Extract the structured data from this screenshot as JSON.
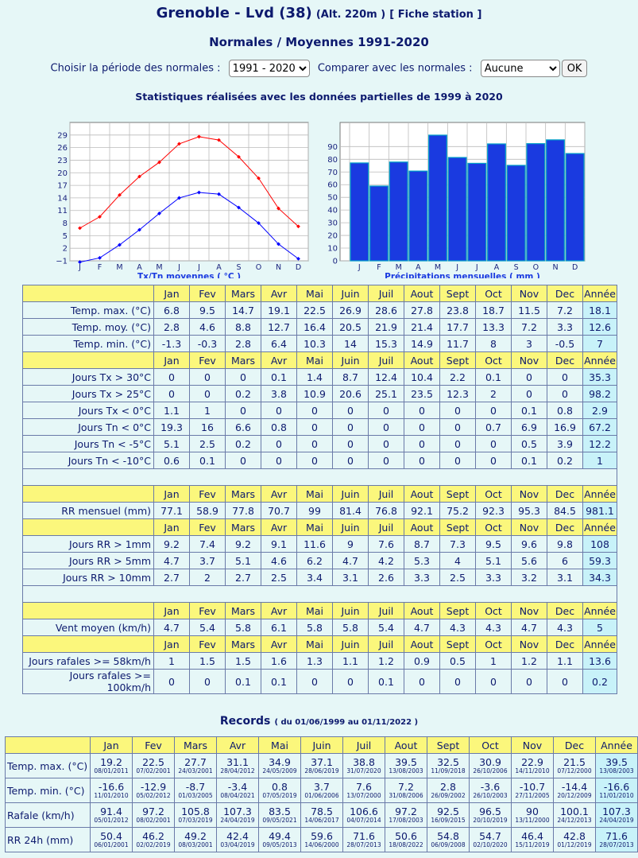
{
  "header": {
    "city": "Grenoble - Lvd (38)",
    "alt": "(Alt. 220m )",
    "fiche": "[ Fiche station ]",
    "subtitle": "Normales / Moyennes 1991-2020",
    "period_label": "Choisir la période des normales :",
    "period_value": "1991 - 2020",
    "compare_label": "Comparer avec les normales :",
    "compare_value": "Aucune",
    "ok_label": "OK",
    "stats_note": "Statistiques réalisées avec les données partielles de 1999 à 2020"
  },
  "months_short": [
    "J",
    "F",
    "M",
    "A",
    "M",
    "J",
    "J",
    "A",
    "S",
    "O",
    "N",
    "D"
  ],
  "chart_data": [
    {
      "type": "line",
      "xlabel": "Tx/Tn moyennes ( °C )",
      "categories": [
        "J",
        "F",
        "M",
        "A",
        "M",
        "J",
        "J",
        "A",
        "S",
        "O",
        "N",
        "D"
      ],
      "yticks": [
        "29",
        "26",
        "23",
        "20",
        "17",
        "14",
        "11",
        "8",
        "5",
        "2",
        "−1"
      ],
      "ylim": [
        -1,
        29
      ],
      "series": [
        {
          "values": [
            6.8,
            9.5,
            14.7,
            19.1,
            22.5,
            26.9,
            28.6,
            27.8,
            23.8,
            18.7,
            11.5,
            7.2
          ],
          "color": "#ff0000"
        },
        {
          "values": [
            -1.3,
            -0.3,
            2.8,
            6.4,
            10.3,
            14,
            15.3,
            14.9,
            11.7,
            8,
            3,
            -0.5
          ],
          "color": "#0000ff"
        }
      ]
    },
    {
      "type": "bar",
      "xlabel": "Précipitations mensuelles ( mm )",
      "categories": [
        "J",
        "F",
        "M",
        "A",
        "M",
        "J",
        "J",
        "A",
        "S",
        "O",
        "N",
        "D"
      ],
      "yticks": [
        "90",
        "80",
        "70",
        "60",
        "50",
        "40",
        "30",
        "20",
        "10",
        "0"
      ],
      "ylim": [
        0,
        100
      ],
      "values": [
        77.1,
        58.9,
        77.8,
        70.7,
        99,
        81.4,
        76.8,
        92.1,
        75.2,
        92.3,
        95.3,
        84.5
      ],
      "color": "#1a3ae0"
    }
  ],
  "normals": {
    "months": [
      "Jan",
      "Fev",
      "Mars",
      "Avr",
      "Mai",
      "Juin",
      "Juil",
      "Aout",
      "Sept",
      "Oct",
      "Nov",
      "Dec"
    ],
    "year_label": "Année",
    "groups": [
      [
        {
          "label": "Temp. max. (°C)",
          "values": [
            "6.8",
            "9.5",
            "14.7",
            "19.1",
            "22.5",
            "26.9",
            "28.6",
            "27.8",
            "23.8",
            "18.7",
            "11.5",
            "7.2"
          ],
          "year": "18.1"
        },
        {
          "label": "Temp. moy. (°C)",
          "values": [
            "2.8",
            "4.6",
            "8.8",
            "12.7",
            "16.4",
            "20.5",
            "21.9",
            "21.4",
            "17.7",
            "13.3",
            "7.2",
            "3.3"
          ],
          "year": "12.6"
        },
        {
          "label": "Temp. min. (°C)",
          "values": [
            "-1.3",
            "-0.3",
            "2.8",
            "6.4",
            "10.3",
            "14",
            "15.3",
            "14.9",
            "11.7",
            "8",
            "3",
            "-0.5"
          ],
          "year": "7"
        }
      ],
      [
        {
          "label": "Jours Tx > 30°C",
          "values": [
            "0",
            "0",
            "0",
            "0.1",
            "1.4",
            "8.7",
            "12.4",
            "10.4",
            "2.2",
            "0.1",
            "0",
            "0"
          ],
          "year": "35.3"
        },
        {
          "label": "Jours Tx > 25°C",
          "values": [
            "0",
            "0",
            "0.2",
            "3.8",
            "10.9",
            "20.6",
            "25.1",
            "23.5",
            "12.3",
            "2",
            "0",
            "0"
          ],
          "year": "98.2"
        },
        {
          "label": "Jours Tx < 0°C",
          "values": [
            "1.1",
            "1",
            "0",
            "0",
            "0",
            "0",
            "0",
            "0",
            "0",
            "0",
            "0.1",
            "0.8"
          ],
          "year": "2.9"
        },
        {
          "label": "Jours Tn < 0°C",
          "values": [
            "19.3",
            "16",
            "6.6",
            "0.8",
            "0",
            "0",
            "0",
            "0",
            "0",
            "0.7",
            "6.9",
            "16.9"
          ],
          "year": "67.2"
        },
        {
          "label": "Jours Tn < -5°C",
          "values": [
            "5.1",
            "2.5",
            "0.2",
            "0",
            "0",
            "0",
            "0",
            "0",
            "0",
            "0",
            "0.5",
            "3.9"
          ],
          "year": "12.2"
        },
        {
          "label": "Jours Tn < -10°C",
          "values": [
            "0.6",
            "0.1",
            "0",
            "0",
            "0",
            "0",
            "0",
            "0",
            "0",
            "0",
            "0.1",
            "0.2"
          ],
          "year": "1"
        }
      ],
      "spacer",
      [
        {
          "label": "RR mensuel (mm)",
          "values": [
            "77.1",
            "58.9",
            "77.8",
            "70.7",
            "99",
            "81.4",
            "76.8",
            "92.1",
            "75.2",
            "92.3",
            "95.3",
            "84.5"
          ],
          "year": "981.1"
        }
      ],
      [
        {
          "label": "Jours RR > 1mm",
          "values": [
            "9.2",
            "7.4",
            "9.2",
            "9.1",
            "11.6",
            "9",
            "7.6",
            "8.7",
            "7.3",
            "9.5",
            "9.6",
            "9.8"
          ],
          "year": "108"
        },
        {
          "label": "Jours RR > 5mm",
          "values": [
            "4.7",
            "3.7",
            "5.1",
            "4.6",
            "6.2",
            "4.7",
            "4.2",
            "5.3",
            "4",
            "5.1",
            "5.6",
            "6"
          ],
          "year": "59.3"
        },
        {
          "label": "Jours RR > 10mm",
          "values": [
            "2.7",
            "2",
            "2.7",
            "2.5",
            "3.4",
            "3.1",
            "2.6",
            "3.3",
            "2.5",
            "3.3",
            "3.2",
            "3.1"
          ],
          "year": "34.3"
        }
      ],
      "spacer",
      [
        {
          "label": "Vent moyen (km/h)",
          "values": [
            "4.7",
            "5.4",
            "5.8",
            "6.1",
            "5.8",
            "5.8",
            "5.4",
            "4.7",
            "4.3",
            "4.3",
            "4.7",
            "4.3"
          ],
          "year": "5"
        }
      ],
      [
        {
          "label": "Jours rafales >= 58km/h",
          "values": [
            "1",
            "1.5",
            "1.5",
            "1.6",
            "1.3",
            "1.1",
            "1.2",
            "0.9",
            "0.5",
            "1",
            "1.2",
            "1.1"
          ],
          "year": "13.6"
        },
        {
          "label": "Jours rafales >= 100km/h",
          "values": [
            "0",
            "0",
            "0.1",
            "0.1",
            "0",
            "0",
            "0.1",
            "0",
            "0",
            "0",
            "0",
            "0"
          ],
          "year": "0.2"
        }
      ]
    ]
  },
  "records": {
    "title": "Records",
    "range": "( du 01/06/1999 au 01/11/2022 )",
    "rows": [
      {
        "label": "Temp. max. (°C)",
        "cells": [
          [
            "19.2",
            "08/01/2011"
          ],
          [
            "22.5",
            "07/02/2001"
          ],
          [
            "27.7",
            "24/03/2001"
          ],
          [
            "31.1",
            "28/04/2012"
          ],
          [
            "34.9",
            "24/05/2009"
          ],
          [
            "37.1",
            "28/06/2019"
          ],
          [
            "38.8",
            "31/07/2020"
          ],
          [
            "39.5",
            "13/08/2003"
          ],
          [
            "32.5",
            "11/09/2018"
          ],
          [
            "30.9",
            "26/10/2006"
          ],
          [
            "22.9",
            "14/11/2010"
          ],
          [
            "21.5",
            "07/12/2000"
          ],
          [
            "39.5",
            "13/08/2003"
          ]
        ]
      },
      {
        "label": "Temp. min. (°C)",
        "cells": [
          [
            "-16.6",
            "11/01/2010"
          ],
          [
            "-12.9",
            "05/02/2012"
          ],
          [
            "-8.7",
            "01/03/2005"
          ],
          [
            "-3.4",
            "08/04/2021"
          ],
          [
            "0.8",
            "07/05/2019"
          ],
          [
            "3.7",
            "01/06/2006"
          ],
          [
            "7.6",
            "13/07/2000"
          ],
          [
            "7.2",
            "31/08/2006"
          ],
          [
            "2.8",
            "26/09/2002"
          ],
          [
            "-3.6",
            "26/10/2003"
          ],
          [
            "-10.7",
            "27/11/2005"
          ],
          [
            "-14.4",
            "20/12/2009"
          ],
          [
            "-16.6",
            "11/01/2010"
          ]
        ]
      },
      {
        "label": "Rafale (km/h)",
        "cells": [
          [
            "91.4",
            "05/01/2012"
          ],
          [
            "97.2",
            "08/02/2001"
          ],
          [
            "105.8",
            "07/03/2019"
          ],
          [
            "107.3",
            "24/04/2019"
          ],
          [
            "83.5",
            "09/05/2021"
          ],
          [
            "78.5",
            "14/06/2017"
          ],
          [
            "106.6",
            "04/07/2014"
          ],
          [
            "97.2",
            "17/08/2003"
          ],
          [
            "92.5",
            "16/09/2015"
          ],
          [
            "96.5",
            "20/10/2019"
          ],
          [
            "90",
            "13/11/2000"
          ],
          [
            "100.1",
            "24/12/2013"
          ],
          [
            "107.3",
            "24/04/2019"
          ]
        ]
      },
      {
        "label": "RR 24h (mm)",
        "cells": [
          [
            "50.4",
            "06/01/2001"
          ],
          [
            "46.2",
            "02/02/2019"
          ],
          [
            "49.2",
            "08/03/2001"
          ],
          [
            "42.4",
            "03/04/2019"
          ],
          [
            "49.4",
            "09/05/2013"
          ],
          [
            "59.6",
            "14/06/2000"
          ],
          [
            "71.6",
            "28/07/2013"
          ],
          [
            "50.6",
            "18/08/2022"
          ],
          [
            "54.8",
            "06/09/2008"
          ],
          [
            "54.7",
            "02/10/2020"
          ],
          [
            "46.4",
            "15/11/2019"
          ],
          [
            "42.8",
            "01/12/2019"
          ],
          [
            "71.6",
            "28/07/2013"
          ]
        ]
      }
    ]
  }
}
